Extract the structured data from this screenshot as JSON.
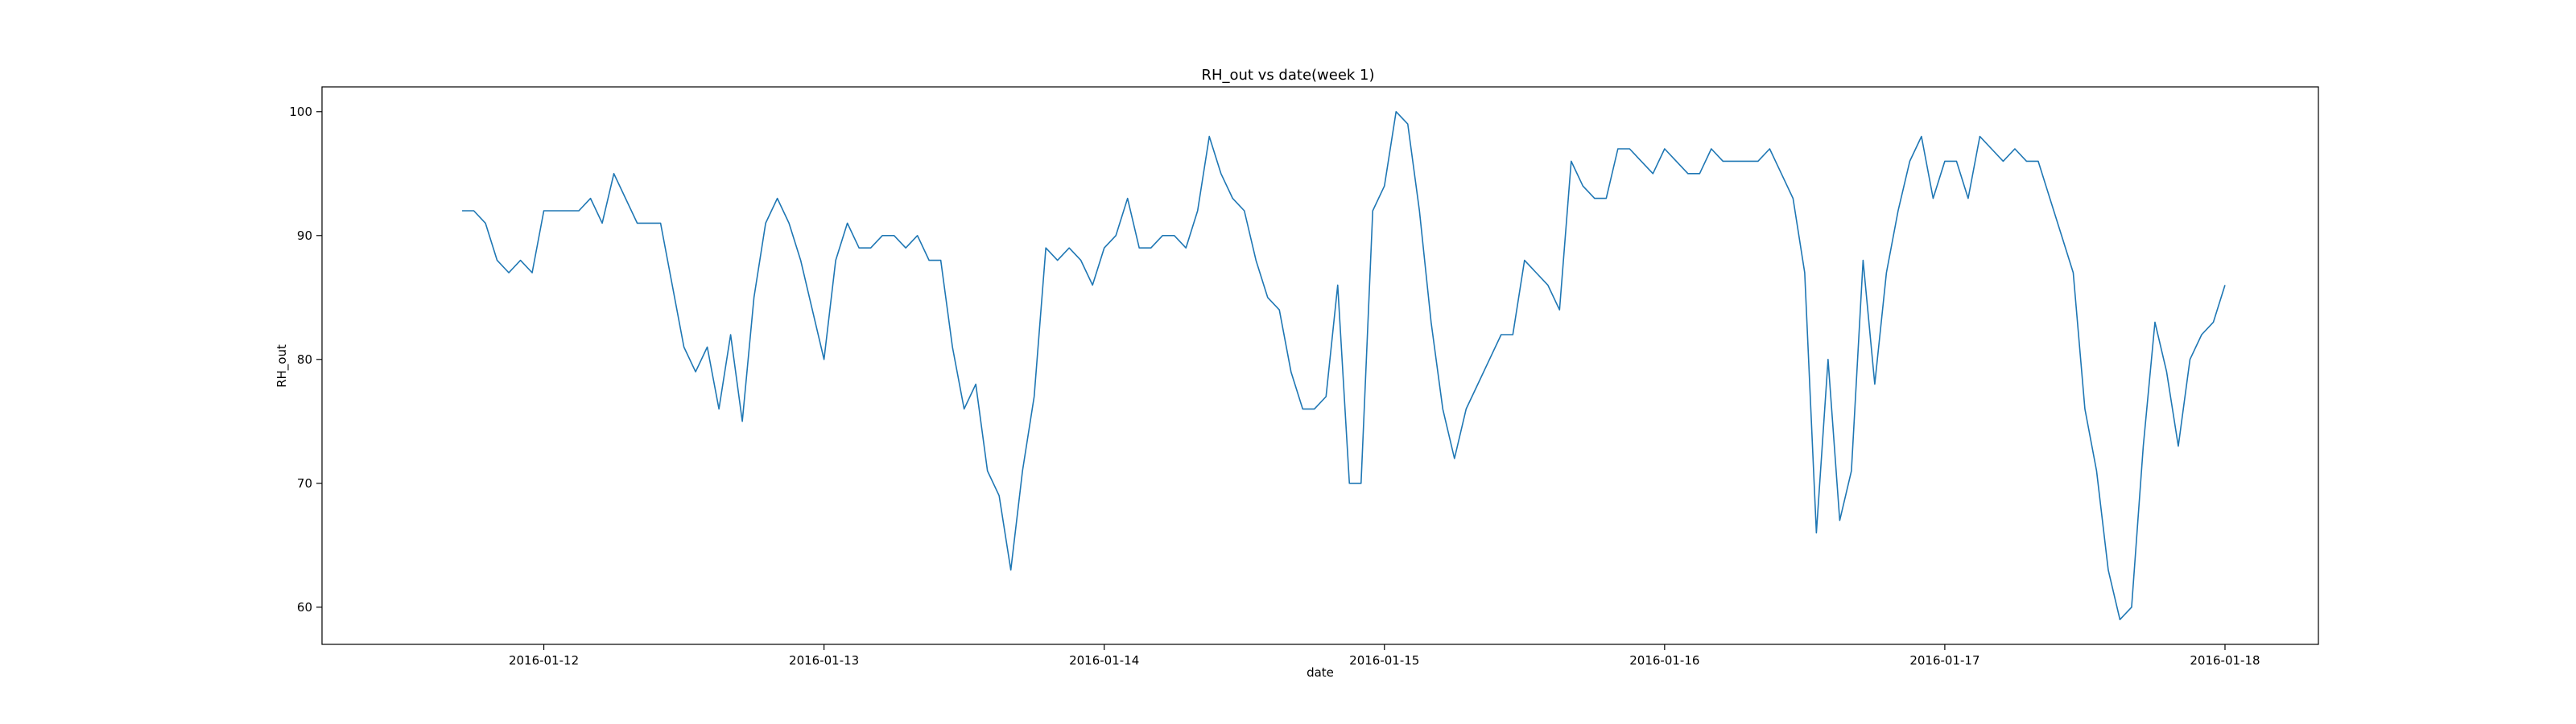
{
  "chart_data": {
    "type": "line",
    "title": "RH_out vs date(week 1)",
    "xlabel": "date",
    "ylabel": "RH_out",
    "x_tick_labels": [
      "2016-01-12",
      "2016-01-13",
      "2016-01-14",
      "2016-01-15",
      "2016-01-16",
      "2016-01-17",
      "2016-01-18"
    ],
    "y_tick_labels": [
      "60",
      "70",
      "80",
      "90",
      "100"
    ],
    "y_ticks": [
      60,
      70,
      80,
      90,
      100
    ],
    "xlim": [
      "2016-01-11 05:00",
      "2016-01-18 08:00"
    ],
    "ylim": [
      57,
      102
    ],
    "grid": false,
    "line_color": "#1f77b4",
    "series": [
      {
        "x": [
          "2016-01-11 17:00",
          "2016-01-11 18:00",
          "2016-01-11 19:00",
          "2016-01-11 20:00",
          "2016-01-11 21:00",
          "2016-01-11 22:00",
          "2016-01-11 23:00",
          "2016-01-12 00:00",
          "2016-01-12 01:00",
          "2016-01-12 02:00",
          "2016-01-12 03:00",
          "2016-01-12 04:00",
          "2016-01-12 05:00",
          "2016-01-12 06:00",
          "2016-01-12 07:00",
          "2016-01-12 08:00",
          "2016-01-12 09:00",
          "2016-01-12 10:00",
          "2016-01-12 11:00",
          "2016-01-12 12:00",
          "2016-01-12 13:00",
          "2016-01-12 14:00",
          "2016-01-12 15:00",
          "2016-01-12 16:00",
          "2016-01-12 17:00",
          "2016-01-12 18:00",
          "2016-01-12 19:00",
          "2016-01-12 20:00",
          "2016-01-12 21:00",
          "2016-01-12 22:00",
          "2016-01-12 23:00",
          "2016-01-13 00:00",
          "2016-01-13 01:00",
          "2016-01-13 02:00",
          "2016-01-13 03:00",
          "2016-01-13 04:00",
          "2016-01-13 05:00",
          "2016-01-13 06:00",
          "2016-01-13 07:00",
          "2016-01-13 08:00",
          "2016-01-13 09:00",
          "2016-01-13 10:00",
          "2016-01-13 11:00",
          "2016-01-13 12:00",
          "2016-01-13 13:00",
          "2016-01-13 14:00",
          "2016-01-13 15:00",
          "2016-01-13 16:00",
          "2016-01-13 17:00",
          "2016-01-13 18:00",
          "2016-01-13 19:00",
          "2016-01-13 20:00",
          "2016-01-13 21:00",
          "2016-01-13 22:00",
          "2016-01-13 23:00",
          "2016-01-14 00:00",
          "2016-01-14 01:00",
          "2016-01-14 02:00",
          "2016-01-14 03:00",
          "2016-01-14 04:00",
          "2016-01-14 05:00",
          "2016-01-14 06:00",
          "2016-01-14 07:00",
          "2016-01-14 08:00",
          "2016-01-14 09:00",
          "2016-01-14 10:00",
          "2016-01-14 11:00",
          "2016-01-14 12:00",
          "2016-01-14 13:00",
          "2016-01-14 14:00",
          "2016-01-14 15:00",
          "2016-01-14 16:00",
          "2016-01-14 17:00",
          "2016-01-14 18:00",
          "2016-01-14 19:00",
          "2016-01-14 20:00",
          "2016-01-14 21:00",
          "2016-01-14 22:00",
          "2016-01-14 23:00",
          "2016-01-15 00:00",
          "2016-01-15 01:00",
          "2016-01-15 02:00",
          "2016-01-15 03:00",
          "2016-01-15 04:00",
          "2016-01-15 05:00",
          "2016-01-15 06:00",
          "2016-01-15 07:00",
          "2016-01-15 08:00",
          "2016-01-15 09:00",
          "2016-01-15 10:00",
          "2016-01-15 11:00",
          "2016-01-15 12:00",
          "2016-01-15 13:00",
          "2016-01-15 14:00",
          "2016-01-15 15:00",
          "2016-01-15 16:00",
          "2016-01-15 17:00",
          "2016-01-15 18:00",
          "2016-01-15 19:00",
          "2016-01-15 20:00",
          "2016-01-15 21:00",
          "2016-01-15 22:00",
          "2016-01-15 23:00",
          "2016-01-16 00:00",
          "2016-01-16 01:00",
          "2016-01-16 02:00",
          "2016-01-16 03:00",
          "2016-01-16 04:00",
          "2016-01-16 05:00",
          "2016-01-16 06:00",
          "2016-01-16 07:00",
          "2016-01-16 08:00",
          "2016-01-16 09:00",
          "2016-01-16 10:00",
          "2016-01-16 11:00",
          "2016-01-16 12:00",
          "2016-01-16 13:00",
          "2016-01-16 14:00",
          "2016-01-16 15:00",
          "2016-01-16 16:00",
          "2016-01-16 17:00",
          "2016-01-16 18:00",
          "2016-01-16 19:00",
          "2016-01-16 20:00",
          "2016-01-16 21:00",
          "2016-01-16 22:00",
          "2016-01-16 23:00",
          "2016-01-17 00:00",
          "2016-01-17 01:00",
          "2016-01-17 02:00",
          "2016-01-17 03:00",
          "2016-01-17 04:00",
          "2016-01-17 05:00",
          "2016-01-17 06:00",
          "2016-01-17 07:00",
          "2016-01-17 08:00",
          "2016-01-17 09:00",
          "2016-01-17 10:00",
          "2016-01-17 11:00",
          "2016-01-17 12:00",
          "2016-01-17 13:00",
          "2016-01-17 14:00",
          "2016-01-17 15:00",
          "2016-01-17 16:00",
          "2016-01-17 17:00",
          "2016-01-17 18:00",
          "2016-01-17 19:00",
          "2016-01-17 20:00",
          "2016-01-17 21:00",
          "2016-01-17 22:00",
          "2016-01-17 23:00",
          "2016-01-18 00:00"
        ],
        "values": [
          92,
          92,
          91,
          88,
          87,
          88,
          87,
          92,
          92,
          92,
          92,
          93,
          91,
          95,
          93,
          91,
          91,
          91,
          86,
          81,
          79,
          81,
          76,
          82,
          75,
          85,
          91,
          93,
          91,
          88,
          84,
          80,
          88,
          91,
          89,
          89,
          90,
          90,
          89,
          90,
          88,
          88,
          81,
          76,
          78,
          71,
          69,
          63,
          71,
          77,
          89,
          88,
          89,
          88,
          86,
          89,
          90,
          93,
          89,
          89,
          90,
          90,
          89,
          92,
          98,
          95,
          93,
          92,
          88,
          85,
          84,
          79,
          76,
          76,
          77,
          86,
          70,
          70,
          92,
          94,
          100,
          99,
          92,
          83,
          76,
          72,
          76,
          78,
          80,
          82,
          82,
          88,
          87,
          86,
          84,
          96,
          94,
          93,
          93,
          97,
          97,
          96,
          95,
          97,
          96,
          95,
          95,
          97,
          96,
          96,
          96,
          96,
          97,
          95,
          93,
          87,
          66,
          80,
          67,
          71,
          88,
          78,
          87,
          92,
          96,
          98,
          93,
          96,
          96,
          93,
          98,
          97,
          96,
          97,
          96,
          96,
          93,
          90,
          87,
          76,
          71,
          63,
          59,
          60,
          73,
          83,
          79,
          73,
          80,
          82,
          83,
          86
        ]
      }
    ]
  }
}
